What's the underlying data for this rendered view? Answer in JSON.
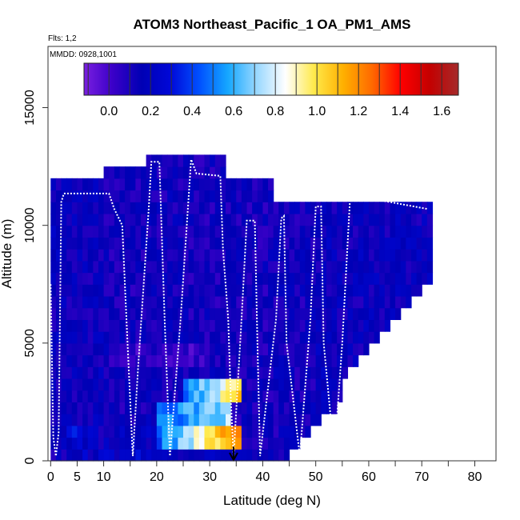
{
  "chart_data": {
    "type": "heatmap",
    "title": "ATOM3 Northeast_Pacific_1 OA_PM1_AMS",
    "subtitle_flights": "Flts: 1,2",
    "subtitle_dates": "MMDD: 0928,1001",
    "xlabel": "Latitude (deg N)",
    "ylabel": "Altitude (m)",
    "xlim": [
      -0.5,
      84
    ],
    "ylim": [
      0,
      17600
    ],
    "x_ticks": [
      0,
      5,
      10,
      20,
      30,
      40,
      50,
      60,
      70,
      80
    ],
    "x_ticks_minor": [
      15,
      25,
      35,
      45,
      55,
      65,
      75,
      85
    ],
    "y_ticks": [
      0,
      5000,
      10000,
      15000
    ],
    "colorbar": {
      "range": [
        -0.12,
        1.68
      ],
      "ticks": [
        0.0,
        0.2,
        0.4,
        0.6,
        0.8,
        1.0,
        1.2,
        1.4,
        1.6
      ],
      "tick_labels": [
        "0.0",
        "0.2",
        "0.4",
        "0.6",
        "0.8",
        "1.0",
        "1.2",
        "1.4",
        "1.6"
      ],
      "colors": [
        "#7a1fe0",
        "#3a00c8",
        "#0000b4",
        "#0008d8",
        "#0050ff",
        "#16a8ff",
        "#9ad8ff",
        "#ffffff",
        "#ffe94a",
        "#ffb000",
        "#ff6a00",
        "#ff0000",
        "#c40000",
        "#a52a2a"
      ]
    },
    "grid": {
      "lat_min": 0,
      "lat_step": 1,
      "alt_min": 0,
      "alt_step": 500,
      "columns": [
        {
          "lat_range": [
            0,
            10
          ],
          "alt_top": 12000,
          "base": 0.15
        },
        {
          "lat_range": [
            10,
            18
          ],
          "alt_top": 12500,
          "base": 0.12
        },
        {
          "lat_range": [
            18,
            26
          ],
          "alt_top": 13000,
          "base": 0.13
        },
        {
          "lat_range": [
            26,
            33
          ],
          "alt_top": 12700,
          "base": 0.12
        },
        {
          "lat_range": [
            33,
            42
          ],
          "alt_top": 12000,
          "base": 0.12
        },
        {
          "lat_range": [
            42,
            50
          ],
          "alt_top": 11000,
          "base": 0.13
        },
        {
          "lat_range": [
            50,
            72
          ],
          "alt_top": 11000,
          "base": 0.15
        }
      ],
      "hotspots": [
        {
          "lat_range": [
            20,
            36
          ],
          "alt_range": [
            500,
            1500
          ],
          "value": 1.3
        },
        {
          "lat_range": [
            25,
            36
          ],
          "alt_range": [
            2500,
            3500
          ],
          "value": 1.1
        },
        {
          "lat_range": [
            20,
            34
          ],
          "alt_range": [
            1500,
            2500
          ],
          "value": 0.75
        }
      ]
    },
    "flight_track": {
      "points": [
        [
          0,
          7500
        ],
        [
          0.5,
          1000
        ],
        [
          1,
          200
        ],
        [
          1.5,
          1200
        ],
        [
          2,
          11000
        ],
        [
          2.5,
          11350
        ],
        [
          11,
          11350
        ],
        [
          12,
          10700
        ],
        [
          13.5,
          10000
        ],
        [
          14.5,
          5000
        ],
        [
          15.5,
          200
        ],
        [
          16.5,
          4000
        ],
        [
          18.5,
          10700
        ],
        [
          19,
          12700
        ],
        [
          20.5,
          12700
        ],
        [
          21.5,
          6000
        ],
        [
          22.5,
          200
        ],
        [
          24.5,
          6000
        ],
        [
          26.5,
          12800
        ],
        [
          27.5,
          12200
        ],
        [
          32,
          12100
        ],
        [
          32.5,
          9000
        ],
        [
          33.5,
          6000
        ],
        [
          34,
          2500
        ],
        [
          34.5,
          200
        ],
        [
          36,
          6000
        ],
        [
          37,
          10200
        ],
        [
          38.5,
          10200
        ],
        [
          39,
          5000
        ],
        [
          39.5,
          200
        ],
        [
          42.5,
          6000
        ],
        [
          43.5,
          10300
        ],
        [
          44,
          10400
        ],
        [
          44.5,
          5000
        ],
        [
          47,
          200
        ],
        [
          49,
          6000
        ],
        [
          50,
          10800
        ],
        [
          51,
          10800
        ],
        [
          51.5,
          5000
        ],
        [
          53.5,
          200
        ],
        [
          55,
          5000
        ],
        [
          56.5,
          11300
        ],
        [
          71,
          10700
        ]
      ],
      "arrow": {
        "lat": 34.5,
        "alt_from": 600,
        "alt_to": 0
      }
    }
  }
}
